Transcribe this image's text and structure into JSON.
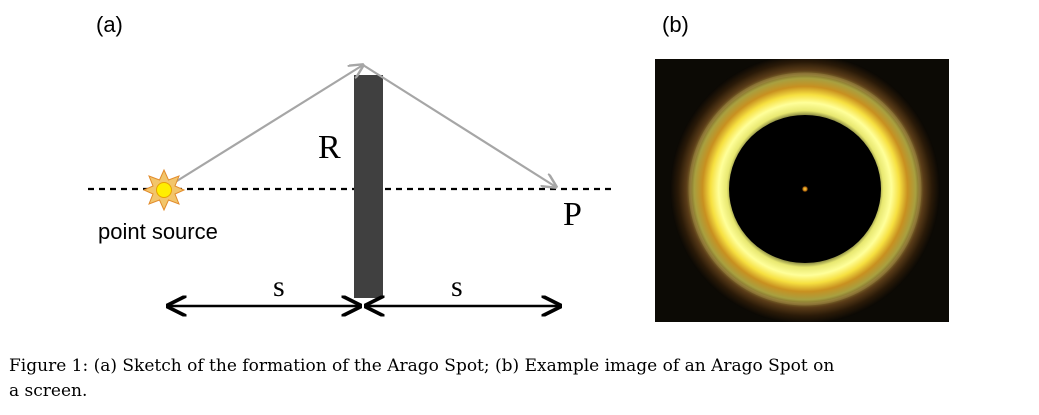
{
  "figure": {
    "panel_a_label": "(a)",
    "panel_b_label": "(b)",
    "diagram": {
      "radius_label": "R",
      "point_label": "P",
      "source_label": "point source",
      "distance_left_label": "s",
      "distance_right_label": "s"
    },
    "caption_line_1": "Figure 1: (a) Sketch of the formation of the Arago Spot; (b) Example image of an Arago Spot on",
    "caption_line_2": "a screen."
  }
}
